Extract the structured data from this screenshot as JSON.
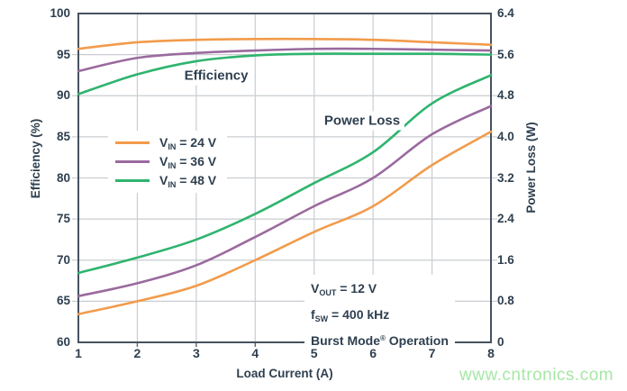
{
  "watermark": "www.cntronics.com",
  "colors": {
    "accent_orange": "#F29B4B",
    "accent_purple": "#9A6A9E",
    "accent_green": "#2FB46E",
    "text_dark": "#2E3F4F",
    "frame": "#46525F",
    "gridline": "#C9CDD1",
    "bottom_tick": "#5A6673",
    "watermark_green": "#A6E7A6",
    "background": "#FFFFFF"
  },
  "chart_data": {
    "type": "line",
    "x_label": "Load Current (A)",
    "x": [
      1,
      2,
      3,
      4,
      5,
      6,
      7,
      8
    ],
    "x_ticks": [
      "1",
      "2",
      "3",
      "4",
      "5",
      "6",
      "7",
      "8"
    ],
    "x_range": [
      1,
      8
    ],
    "grid": true,
    "left_axis": {
      "label": "Efficiency (%)",
      "range": [
        60,
        100
      ],
      "ticks": [
        "100",
        "95",
        "90",
        "85",
        "80",
        "75",
        "70",
        "65",
        "60"
      ]
    },
    "right_axis": {
      "label": "Power Loss (W)",
      "range": [
        0,
        6.4
      ],
      "ticks": [
        "6.4",
        "5.6",
        "4.8",
        "4.0",
        "3.2",
        "2.4",
        "1.6",
        "0.8",
        "0"
      ]
    },
    "inplot_labels": {
      "efficiency": "Efficiency",
      "power_loss": "Power Loss"
    },
    "series": [
      {
        "name": "Efficiency VIN 24 V",
        "axis": "left",
        "color": "#F29B4B",
        "values": [
          95.7,
          96.5,
          96.8,
          96.9,
          96.9,
          96.8,
          96.5,
          96.2
        ]
      },
      {
        "name": "Efficiency VIN 36 V",
        "axis": "left",
        "color": "#9A6A9E",
        "values": [
          93.0,
          94.6,
          95.2,
          95.5,
          95.7,
          95.7,
          95.6,
          95.5
        ]
      },
      {
        "name": "Efficiency VIN 48 V",
        "axis": "left",
        "color": "#2FB46E",
        "values": [
          90.2,
          92.6,
          94.2,
          94.9,
          95.1,
          95.1,
          95.1,
          95.0
        ]
      },
      {
        "name": "Power Loss VIN 24 V",
        "axis": "right",
        "color": "#F29B4B",
        "values": [
          0.55,
          0.8,
          1.1,
          1.6,
          2.15,
          2.65,
          3.45,
          4.1
        ]
      },
      {
        "name": "Power Loss VIN 36 V",
        "axis": "right",
        "color": "#9A6A9E",
        "values": [
          0.9,
          1.15,
          1.5,
          2.05,
          2.65,
          3.2,
          4.05,
          4.6
        ]
      },
      {
        "name": "Power Loss VIN 48 V",
        "axis": "right",
        "color": "#2FB46E",
        "values": [
          1.35,
          1.65,
          2.0,
          2.5,
          3.1,
          3.7,
          4.65,
          5.2
        ]
      }
    ],
    "legend": {
      "position": "inside upper-left",
      "items": [
        {
          "pre": "V",
          "sub": "IN",
          "post": " = 24 V",
          "color": "#F29B4B"
        },
        {
          "pre": "V",
          "sub": "IN",
          "post": " = 36 V",
          "color": "#9A6A9E"
        },
        {
          "pre": "V",
          "sub": "IN",
          "post": " = 48 V",
          "color": "#2FB46E"
        }
      ]
    },
    "annotations": [
      {
        "pre": "V",
        "sub": "OUT",
        "sup": "",
        "post": " = 12 V"
      },
      {
        "pre": "f",
        "sub": "SW",
        "sup": "",
        "post": " = 400 kHz"
      },
      {
        "pre": "Burst Mode",
        "sub": "",
        "sup": "®",
        "post": " Operation"
      }
    ]
  }
}
